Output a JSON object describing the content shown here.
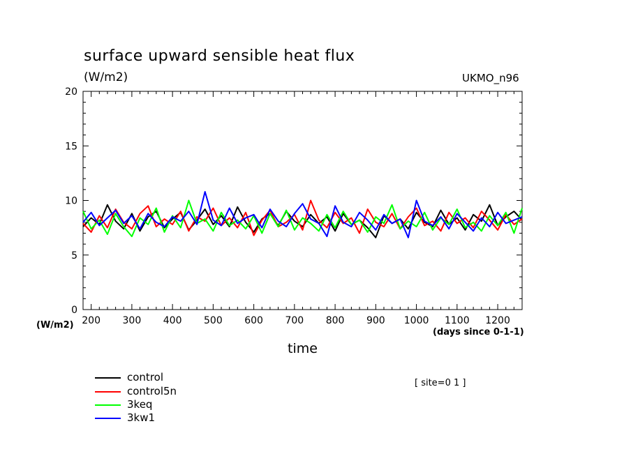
{
  "chart_data": {
    "type": "line",
    "title": "surface upward sensible heat flux",
    "unit_label_top": "(W/m2)",
    "unit_label_bottom": "(W/m2)",
    "model_label": "UKMO_n96",
    "xlabel": "time",
    "x_unit_label": "(days since 0-1-1)",
    "site_label": "[ site=0 1 ]",
    "xlim": [
      180,
      1260
    ],
    "ylim": [
      0,
      20
    ],
    "x_ticks": [
      "200",
      "300",
      "400",
      "500",
      "600",
      "700",
      "800",
      "900",
      "1000",
      "1100",
      "1200"
    ],
    "y_ticks": [
      "0",
      "5",
      "10",
      "15",
      "20"
    ],
    "grid": false,
    "legend_position": "bottom-left",
    "series": [
      {
        "name": "control",
        "color": "#000000",
        "x": [
          180,
          200,
          220,
          240,
          260,
          280,
          300,
          320,
          340,
          360,
          380,
          400,
          420,
          440,
          460,
          480,
          500,
          520,
          540,
          560,
          580,
          600,
          620,
          640,
          660,
          680,
          700,
          720,
          740,
          760,
          780,
          800,
          820,
          840,
          860,
          880,
          900,
          920,
          940,
          960,
          980,
          1000,
          1020,
          1040,
          1060,
          1080,
          1100,
          1120,
          1140,
          1160,
          1180,
          1200,
          1220,
          1240,
          1260
        ],
        "y": [
          7.6,
          8.4,
          7.8,
          9.6,
          8.1,
          7.4,
          8.8,
          7.2,
          8.5,
          9.0,
          7.5,
          8.3,
          8.9,
          7.3,
          8.2,
          9.2,
          7.8,
          8.6,
          7.6,
          9.4,
          8.0,
          7.1,
          8.3,
          8.8,
          7.7,
          9.0,
          8.1,
          7.6,
          8.7,
          7.9,
          8.5,
          7.2,
          8.8,
          7.8,
          8.2,
          7.5,
          6.6,
          8.6,
          7.9,
          8.3,
          7.4,
          8.9,
          8.0,
          7.6,
          9.1,
          7.8,
          8.4,
          7.3,
          8.7,
          8.1,
          9.6,
          7.7,
          8.5,
          9.0,
          8.2
        ]
      },
      {
        "name": "control5n",
        "color": "#ff0000",
        "x": [
          180,
          200,
          220,
          240,
          260,
          280,
          300,
          320,
          340,
          360,
          380,
          400,
          420,
          440,
          460,
          480,
          500,
          520,
          540,
          560,
          580,
          600,
          620,
          640,
          660,
          680,
          700,
          720,
          740,
          760,
          780,
          800,
          820,
          840,
          860,
          880,
          900,
          920,
          940,
          960,
          980,
          1000,
          1020,
          1040,
          1060,
          1080,
          1100,
          1120,
          1140,
          1160,
          1180,
          1200,
          1220,
          1240,
          1260
        ],
        "y": [
          7.9,
          7.1,
          8.6,
          7.5,
          9.2,
          8.0,
          7.4,
          8.8,
          9.5,
          7.6,
          8.3,
          7.8,
          9.0,
          7.2,
          8.5,
          8.1,
          9.3,
          7.7,
          8.4,
          7.5,
          8.9,
          6.8,
          8.2,
          9.1,
          7.6,
          8.0,
          8.7,
          7.3,
          10.0,
          8.2,
          7.5,
          8.9,
          7.9,
          8.4,
          7.0,
          9.2,
          8.0,
          7.6,
          8.8,
          7.4,
          8.5,
          9.3,
          7.7,
          8.1,
          7.2,
          8.9,
          7.9,
          8.4,
          7.5,
          9.0,
          8.2,
          7.3,
          8.7,
          7.8,
          8.3
        ]
      },
      {
        "name": "3keq",
        "color": "#00ff00",
        "x": [
          180,
          200,
          220,
          240,
          260,
          280,
          300,
          320,
          340,
          360,
          380,
          400,
          420,
          440,
          460,
          480,
          500,
          520,
          540,
          560,
          580,
          600,
          620,
          640,
          660,
          680,
          700,
          720,
          740,
          760,
          780,
          800,
          820,
          840,
          860,
          880,
          900,
          920,
          940,
          960,
          980,
          1000,
          1020,
          1040,
          1060,
          1080,
          1100,
          1120,
          1140,
          1160,
          1180,
          1200,
          1220,
          1240,
          1260
        ],
        "y": [
          9.0,
          7.4,
          8.2,
          6.9,
          8.8,
          7.6,
          6.7,
          8.4,
          7.8,
          9.3,
          7.1,
          8.6,
          7.5,
          10.0,
          7.9,
          8.3,
          7.2,
          8.9,
          7.7,
          8.2,
          7.4,
          8.6,
          7.0,
          8.8,
          7.6,
          9.1,
          7.3,
          8.4,
          7.9,
          7.2,
          8.7,
          7.5,
          9.0,
          7.8,
          8.2,
          7.1,
          8.5,
          7.9,
          9.6,
          7.4,
          8.1,
          7.6,
          8.9,
          7.3,
          8.4,
          7.8,
          9.2,
          7.5,
          8.0,
          7.2,
          8.6,
          7.7,
          8.9,
          7.0,
          9.3
        ]
      },
      {
        "name": "3kw1",
        "color": "#0000ff",
        "x": [
          180,
          200,
          220,
          240,
          260,
          280,
          300,
          320,
          340,
          360,
          380,
          400,
          420,
          440,
          460,
          480,
          500,
          520,
          540,
          560,
          580,
          600,
          620,
          640,
          660,
          680,
          700,
          720,
          740,
          760,
          780,
          800,
          820,
          840,
          860,
          880,
          900,
          920,
          940,
          960,
          980,
          1000,
          1020,
          1040,
          1060,
          1080,
          1100,
          1120,
          1140,
          1160,
          1180,
          1200,
          1220,
          1240,
          1260
        ],
        "y": [
          8.0,
          8.9,
          7.7,
          8.4,
          9.1,
          7.9,
          8.6,
          7.4,
          8.8,
          8.0,
          7.6,
          8.5,
          8.1,
          9.0,
          7.8,
          10.8,
          8.2,
          7.7,
          9.3,
          7.9,
          8.4,
          8.7,
          7.5,
          9.2,
          8.1,
          7.6,
          8.8,
          9.7,
          8.3,
          7.9,
          6.7,
          9.5,
          8.0,
          7.6,
          8.9,
          8.2,
          7.3,
          8.7,
          7.9,
          8.3,
          6.6,
          10.0,
          8.1,
          7.7,
          8.5,
          7.4,
          8.8,
          8.0,
          7.2,
          8.4,
          7.6,
          8.9,
          7.9,
          8.2,
          8.5
        ]
      }
    ]
  }
}
